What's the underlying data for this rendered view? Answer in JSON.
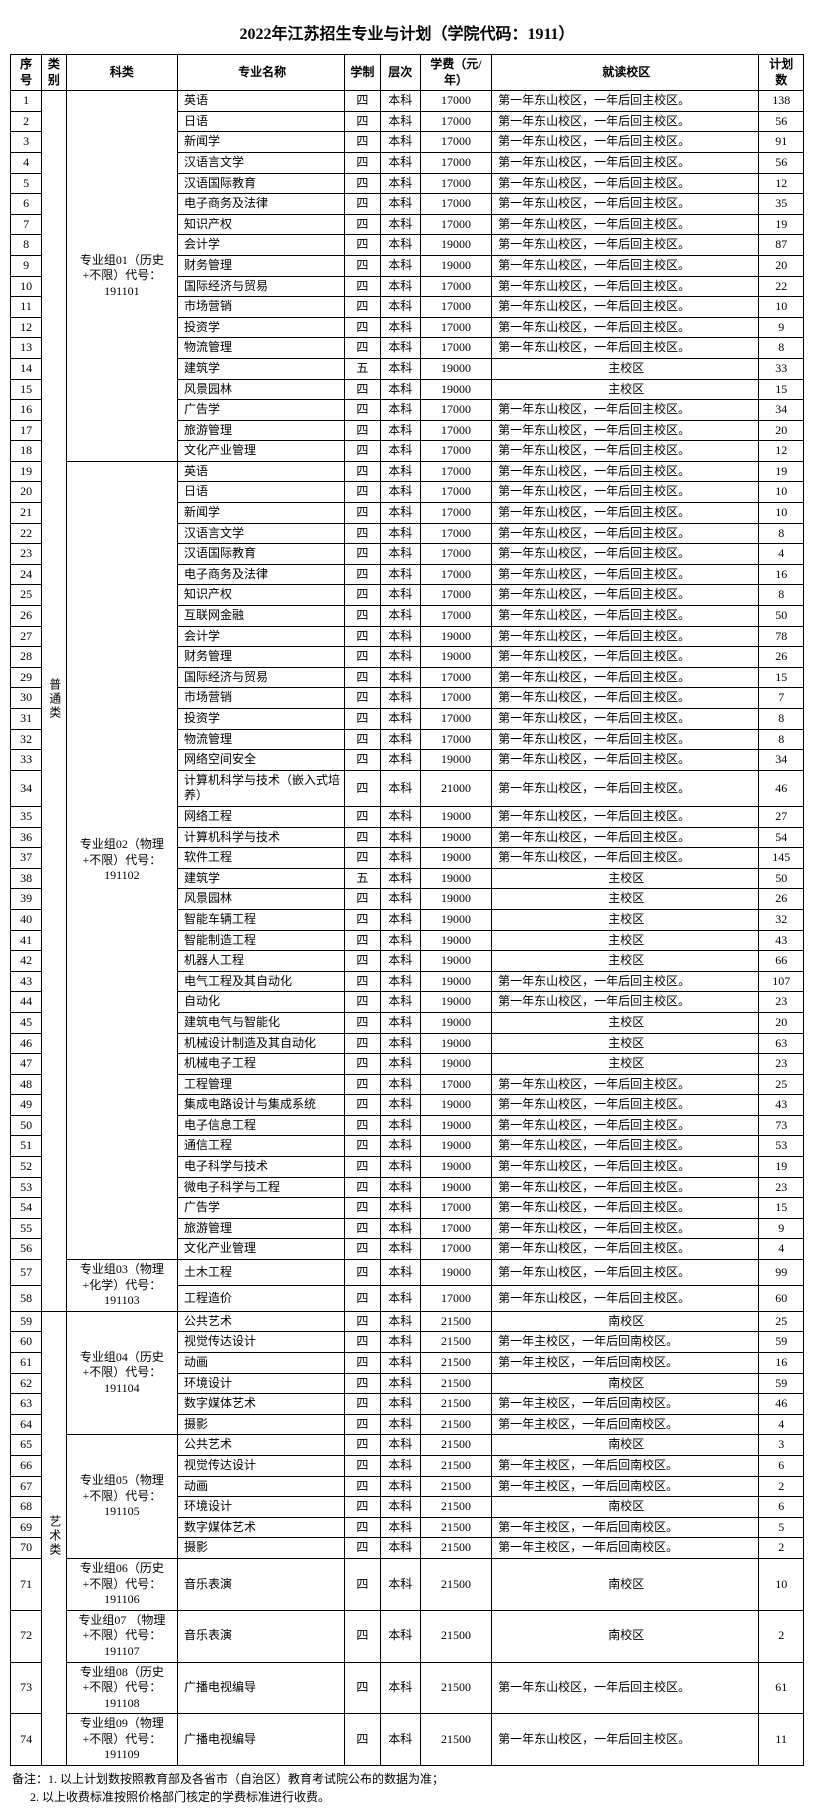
{
  "title": "2022年江苏招生专业与计划（学院代码：1911）",
  "headers": {
    "seq": "序号",
    "category": "类别",
    "group": "科类",
    "major": "专业名称",
    "system": "学制",
    "level": "层次",
    "fee": "学费（元/年）",
    "campus": "就读校区",
    "plan": "计划数"
  },
  "categories": [
    {
      "label": "普通类",
      "rowspan": 58
    },
    {
      "label": "艺术类",
      "rowspan": 16
    }
  ],
  "groups": [
    {
      "label": "专业组01（历史+不限）代号：191101",
      "rowspan": 18
    },
    {
      "label": "专业组02（物理+不限）代号：191102",
      "rowspan": 38
    },
    {
      "label": "专业组03（物理+化学）代号：191103",
      "rowspan": 2
    },
    {
      "label": "专业组04（历史+不限）代号：191104",
      "rowspan": 6
    },
    {
      "label": "专业组05（物理+不限）代号：191105",
      "rowspan": 6
    },
    {
      "label": "专业组06（历史+不限）代号：191106",
      "rowspan": 1
    },
    {
      "label": "专业组07 （物理+不限）代号：191107",
      "rowspan": 1
    },
    {
      "label": "专业组08（历史+不限）代号：191108",
      "rowspan": 1
    },
    {
      "label": "专业组09（物理+不限）代号：191109",
      "rowspan": 1
    }
  ],
  "campus_text": {
    "dongshan": "第一年东山校区，一年后回主校区。",
    "main": "主校区",
    "south": "南校区",
    "main_south": "第一年主校区，一年后回南校区。"
  },
  "rows": [
    {
      "seq": 1,
      "major": "英语",
      "sys": "四",
      "level": "本科",
      "fee": 17000,
      "campus": "dongshan",
      "plan": 138
    },
    {
      "seq": 2,
      "major": "日语",
      "sys": "四",
      "level": "本科",
      "fee": 17000,
      "campus": "dongshan",
      "plan": 56
    },
    {
      "seq": 3,
      "major": "新闻学",
      "sys": "四",
      "level": "本科",
      "fee": 17000,
      "campus": "dongshan",
      "plan": 91
    },
    {
      "seq": 4,
      "major": "汉语言文学",
      "sys": "四",
      "level": "本科",
      "fee": 17000,
      "campus": "dongshan",
      "plan": 56
    },
    {
      "seq": 5,
      "major": "汉语国际教育",
      "sys": "四",
      "level": "本科",
      "fee": 17000,
      "campus": "dongshan",
      "plan": 12
    },
    {
      "seq": 6,
      "major": "电子商务及法律",
      "sys": "四",
      "level": "本科",
      "fee": 17000,
      "campus": "dongshan",
      "plan": 35
    },
    {
      "seq": 7,
      "major": "知识产权",
      "sys": "四",
      "level": "本科",
      "fee": 17000,
      "campus": "dongshan",
      "plan": 19
    },
    {
      "seq": 8,
      "major": "会计学",
      "sys": "四",
      "level": "本科",
      "fee": 19000,
      "campus": "dongshan",
      "plan": 87
    },
    {
      "seq": 9,
      "major": "财务管理",
      "sys": "四",
      "level": "本科",
      "fee": 19000,
      "campus": "dongshan",
      "plan": 20
    },
    {
      "seq": 10,
      "major": "国际经济与贸易",
      "sys": "四",
      "level": "本科",
      "fee": 17000,
      "campus": "dongshan",
      "plan": 22
    },
    {
      "seq": 11,
      "major": "市场营销",
      "sys": "四",
      "level": "本科",
      "fee": 17000,
      "campus": "dongshan",
      "plan": 10
    },
    {
      "seq": 12,
      "major": "投资学",
      "sys": "四",
      "level": "本科",
      "fee": 17000,
      "campus": "dongshan",
      "plan": 9
    },
    {
      "seq": 13,
      "major": "物流管理",
      "sys": "四",
      "level": "本科",
      "fee": 17000,
      "campus": "dongshan",
      "plan": 8
    },
    {
      "seq": 14,
      "major": "建筑学",
      "sys": "五",
      "level": "本科",
      "fee": 19000,
      "campus": "main",
      "plan": 33
    },
    {
      "seq": 15,
      "major": "风景园林",
      "sys": "四",
      "level": "本科",
      "fee": 19000,
      "campus": "main",
      "plan": 15
    },
    {
      "seq": 16,
      "major": "广告学",
      "sys": "四",
      "level": "本科",
      "fee": 17000,
      "campus": "dongshan",
      "plan": 34
    },
    {
      "seq": 17,
      "major": "旅游管理",
      "sys": "四",
      "level": "本科",
      "fee": 17000,
      "campus": "dongshan",
      "plan": 20
    },
    {
      "seq": 18,
      "major": "文化产业管理",
      "sys": "四",
      "level": "本科",
      "fee": 17000,
      "campus": "dongshan",
      "plan": 12
    },
    {
      "seq": 19,
      "major": "英语",
      "sys": "四",
      "level": "本科",
      "fee": 17000,
      "campus": "dongshan",
      "plan": 19
    },
    {
      "seq": 20,
      "major": "日语",
      "sys": "四",
      "level": "本科",
      "fee": 17000,
      "campus": "dongshan",
      "plan": 10
    },
    {
      "seq": 21,
      "major": "新闻学",
      "sys": "四",
      "level": "本科",
      "fee": 17000,
      "campus": "dongshan",
      "plan": 10
    },
    {
      "seq": 22,
      "major": "汉语言文学",
      "sys": "四",
      "level": "本科",
      "fee": 17000,
      "campus": "dongshan",
      "plan": 8
    },
    {
      "seq": 23,
      "major": "汉语国际教育",
      "sys": "四",
      "level": "本科",
      "fee": 17000,
      "campus": "dongshan",
      "plan": 4
    },
    {
      "seq": 24,
      "major": "电子商务及法律",
      "sys": "四",
      "level": "本科",
      "fee": 17000,
      "campus": "dongshan",
      "plan": 16
    },
    {
      "seq": 25,
      "major": "知识产权",
      "sys": "四",
      "level": "本科",
      "fee": 17000,
      "campus": "dongshan",
      "plan": 8
    },
    {
      "seq": 26,
      "major": "互联网金融",
      "sys": "四",
      "level": "本科",
      "fee": 17000,
      "campus": "dongshan",
      "plan": 50
    },
    {
      "seq": 27,
      "major": "会计学",
      "sys": "四",
      "level": "本科",
      "fee": 19000,
      "campus": "dongshan",
      "plan": 78
    },
    {
      "seq": 28,
      "major": "财务管理",
      "sys": "四",
      "level": "本科",
      "fee": 19000,
      "campus": "dongshan",
      "plan": 26
    },
    {
      "seq": 29,
      "major": "国际经济与贸易",
      "sys": "四",
      "level": "本科",
      "fee": 17000,
      "campus": "dongshan",
      "plan": 15
    },
    {
      "seq": 30,
      "major": "市场营销",
      "sys": "四",
      "level": "本科",
      "fee": 17000,
      "campus": "dongshan",
      "plan": 7
    },
    {
      "seq": 31,
      "major": "投资学",
      "sys": "四",
      "level": "本科",
      "fee": 17000,
      "campus": "dongshan",
      "plan": 8
    },
    {
      "seq": 32,
      "major": "物流管理",
      "sys": "四",
      "level": "本科",
      "fee": 17000,
      "campus": "dongshan",
      "plan": 8
    },
    {
      "seq": 33,
      "major": "网络空间安全",
      "sys": "四",
      "level": "本科",
      "fee": 19000,
      "campus": "dongshan",
      "plan": 34
    },
    {
      "seq": 34,
      "major": "计算机科学与技术（嵌入式培养）",
      "sys": "四",
      "level": "本科",
      "fee": 21000,
      "campus": "dongshan",
      "plan": 46
    },
    {
      "seq": 35,
      "major": "网络工程",
      "sys": "四",
      "level": "本科",
      "fee": 19000,
      "campus": "dongshan",
      "plan": 27
    },
    {
      "seq": 36,
      "major": "计算机科学与技术",
      "sys": "四",
      "level": "本科",
      "fee": 19000,
      "campus": "dongshan",
      "plan": 54
    },
    {
      "seq": 37,
      "major": "软件工程",
      "sys": "四",
      "level": "本科",
      "fee": 19000,
      "campus": "dongshan",
      "plan": 145
    },
    {
      "seq": 38,
      "major": "建筑学",
      "sys": "五",
      "level": "本科",
      "fee": 19000,
      "campus": "main",
      "plan": 50
    },
    {
      "seq": 39,
      "major": "风景园林",
      "sys": "四",
      "level": "本科",
      "fee": 19000,
      "campus": "main",
      "plan": 26
    },
    {
      "seq": 40,
      "major": "智能车辆工程",
      "sys": "四",
      "level": "本科",
      "fee": 19000,
      "campus": "main",
      "plan": 32
    },
    {
      "seq": 41,
      "major": "智能制造工程",
      "sys": "四",
      "level": "本科",
      "fee": 19000,
      "campus": "main",
      "plan": 43
    },
    {
      "seq": 42,
      "major": "机器人工程",
      "sys": "四",
      "level": "本科",
      "fee": 19000,
      "campus": "main",
      "plan": 66
    },
    {
      "seq": 43,
      "major": "电气工程及其自动化",
      "sys": "四",
      "level": "本科",
      "fee": 19000,
      "campus": "dongshan",
      "plan": 107
    },
    {
      "seq": 44,
      "major": "自动化",
      "sys": "四",
      "level": "本科",
      "fee": 19000,
      "campus": "dongshan",
      "plan": 23
    },
    {
      "seq": 45,
      "major": "建筑电气与智能化",
      "sys": "四",
      "level": "本科",
      "fee": 19000,
      "campus": "main",
      "plan": 20
    },
    {
      "seq": 46,
      "major": "机械设计制造及其自动化",
      "sys": "四",
      "level": "本科",
      "fee": 19000,
      "campus": "main",
      "plan": 63
    },
    {
      "seq": 47,
      "major": "机械电子工程",
      "sys": "四",
      "level": "本科",
      "fee": 19000,
      "campus": "main",
      "plan": 23
    },
    {
      "seq": 48,
      "major": "工程管理",
      "sys": "四",
      "level": "本科",
      "fee": 17000,
      "campus": "dongshan",
      "plan": 25
    },
    {
      "seq": 49,
      "major": "集成电路设计与集成系统",
      "sys": "四",
      "level": "本科",
      "fee": 19000,
      "campus": "dongshan",
      "plan": 43
    },
    {
      "seq": 50,
      "major": "电子信息工程",
      "sys": "四",
      "level": "本科",
      "fee": 19000,
      "campus": "dongshan",
      "plan": 73
    },
    {
      "seq": 51,
      "major": "通信工程",
      "sys": "四",
      "level": "本科",
      "fee": 19000,
      "campus": "dongshan",
      "plan": 53
    },
    {
      "seq": 52,
      "major": "电子科学与技术",
      "sys": "四",
      "level": "本科",
      "fee": 19000,
      "campus": "dongshan",
      "plan": 19
    },
    {
      "seq": 53,
      "major": "微电子科学与工程",
      "sys": "四",
      "level": "本科",
      "fee": 19000,
      "campus": "dongshan",
      "plan": 23
    },
    {
      "seq": 54,
      "major": "广告学",
      "sys": "四",
      "level": "本科",
      "fee": 17000,
      "campus": "dongshan",
      "plan": 15
    },
    {
      "seq": 55,
      "major": "旅游管理",
      "sys": "四",
      "level": "本科",
      "fee": 17000,
      "campus": "dongshan",
      "plan": 9
    },
    {
      "seq": 56,
      "major": "文化产业管理",
      "sys": "四",
      "level": "本科",
      "fee": 17000,
      "campus": "dongshan",
      "plan": 4
    },
    {
      "seq": 57,
      "major": "土木工程",
      "sys": "四",
      "level": "本科",
      "fee": 19000,
      "campus": "dongshan",
      "plan": 99
    },
    {
      "seq": 58,
      "major": "工程造价",
      "sys": "四",
      "level": "本科",
      "fee": 17000,
      "campus": "dongshan",
      "plan": 60
    },
    {
      "seq": 59,
      "major": "公共艺术",
      "sys": "四",
      "level": "本科",
      "fee": 21500,
      "campus": "south",
      "plan": 25
    },
    {
      "seq": 60,
      "major": "视觉传达设计",
      "sys": "四",
      "level": "本科",
      "fee": 21500,
      "campus": "main_south",
      "plan": 59
    },
    {
      "seq": 61,
      "major": "动画",
      "sys": "四",
      "level": "本科",
      "fee": 21500,
      "campus": "main_south",
      "plan": 16
    },
    {
      "seq": 62,
      "major": "环境设计",
      "sys": "四",
      "level": "本科",
      "fee": 21500,
      "campus": "south",
      "plan": 59
    },
    {
      "seq": 63,
      "major": "数字媒体艺术",
      "sys": "四",
      "level": "本科",
      "fee": 21500,
      "campus": "main_south",
      "plan": 46
    },
    {
      "seq": 64,
      "major": "摄影",
      "sys": "四",
      "level": "本科",
      "fee": 21500,
      "campus": "main_south",
      "plan": 4
    },
    {
      "seq": 65,
      "major": "公共艺术",
      "sys": "四",
      "level": "本科",
      "fee": 21500,
      "campus": "south",
      "plan": 3
    },
    {
      "seq": 66,
      "major": "视觉传达设计",
      "sys": "四",
      "level": "本科",
      "fee": 21500,
      "campus": "main_south",
      "plan": 6
    },
    {
      "seq": 67,
      "major": "动画",
      "sys": "四",
      "level": "本科",
      "fee": 21500,
      "campus": "main_south",
      "plan": 2
    },
    {
      "seq": 68,
      "major": "环境设计",
      "sys": "四",
      "level": "本科",
      "fee": 21500,
      "campus": "south",
      "plan": 6
    },
    {
      "seq": 69,
      "major": "数字媒体艺术",
      "sys": "四",
      "level": "本科",
      "fee": 21500,
      "campus": "main_south",
      "plan": 5
    },
    {
      "seq": 70,
      "major": "摄影",
      "sys": "四",
      "level": "本科",
      "fee": 21500,
      "campus": "main_south",
      "plan": 2
    },
    {
      "seq": 71,
      "major": "音乐表演",
      "sys": "四",
      "level": "本科",
      "fee": 21500,
      "campus": "south",
      "plan": 10
    },
    {
      "seq": 72,
      "major": "音乐表演",
      "sys": "四",
      "level": "本科",
      "fee": 21500,
      "campus": "south",
      "plan": 2
    },
    {
      "seq": 73,
      "major": "广播电视编导",
      "sys": "四",
      "level": "本科",
      "fee": 21500,
      "campus": "dongshan",
      "plan": 61
    },
    {
      "seq": 74,
      "major": "广播电视编导",
      "sys": "四",
      "level": "本科",
      "fee": 21500,
      "campus": "dongshan",
      "plan": 11
    }
  ],
  "notes": {
    "prefix": "备注：",
    "line1": "1. 以上计划数按照教育部及各省市（自治区）教育考试院公布的数据为准；",
    "line2": "2. 以上收费标准按照价格部门核定的学费标准进行收费。"
  }
}
